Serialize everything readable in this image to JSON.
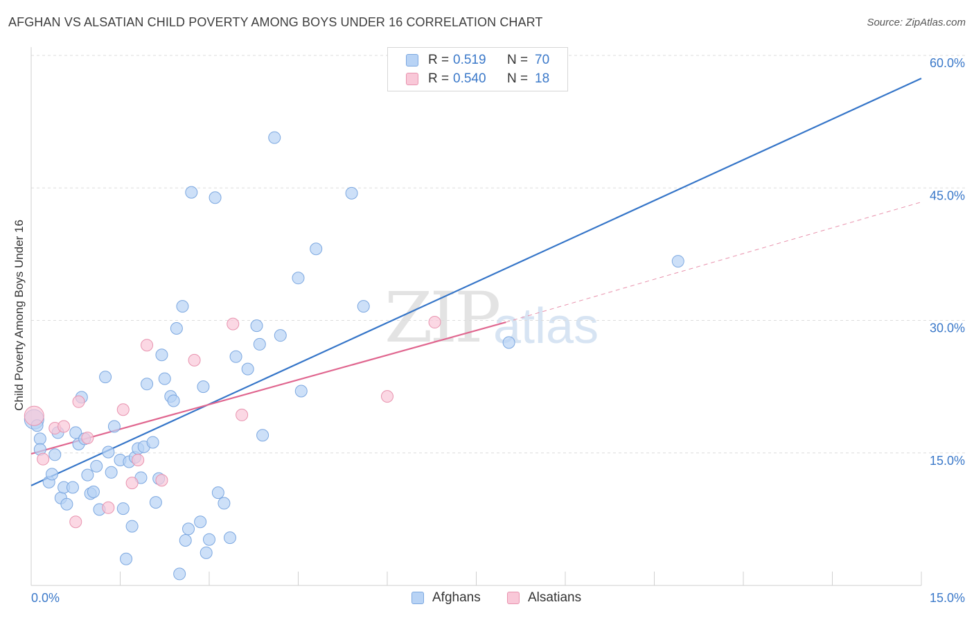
{
  "header": {
    "title": "AFGHAN VS ALSATIAN CHILD POVERTY AMONG BOYS UNDER 16 CORRELATION CHART",
    "source": "Source: ZipAtlas.com"
  },
  "legend": {
    "rows": [
      {
        "r_label": "R =",
        "r_value": "0.519",
        "n_label": "N =",
        "n_value": "70",
        "color": "#b8d3f5",
        "border": "#7ba7e0"
      },
      {
        "r_label": "R =",
        "r_value": "0.540",
        "n_label": "N =",
        "n_value": "18",
        "color": "#f9c8d8",
        "border": "#e892ae"
      }
    ]
  },
  "bottom_legend": {
    "afghans": "Afghans",
    "alsatians": "Alsatians"
  },
  "watermark": {
    "zip": "ZIP",
    "atlas": "atlas"
  },
  "chart_data": {
    "type": "scatter",
    "title": "AFGHAN VS ALSATIAN CHILD POVERTY AMONG BOYS UNDER 16 CORRELATION CHART",
    "xlabel": "",
    "ylabel": "Child Poverty Among Boys Under 16",
    "xlim": [
      0,
      15
    ],
    "ylim": [
      0,
      60
    ],
    "x_tick_labels": [
      "0.0%",
      "15.0%"
    ],
    "y_ticks": [
      15,
      30,
      45,
      60
    ],
    "y_tick_labels": [
      "15.0%",
      "30.0%",
      "45.0%",
      "60.0%"
    ],
    "grid": true,
    "legend_position": "top-center",
    "series": [
      {
        "name": "Afghans",
        "color": "#7ba7e0",
        "fill": "#b8d3f5",
        "points": [
          [
            0.05,
            18.8
          ],
          [
            0.1,
            18.1
          ],
          [
            0.15,
            16.6
          ],
          [
            0.15,
            15.4
          ],
          [
            0.3,
            11.7
          ],
          [
            0.35,
            12.6
          ],
          [
            0.4,
            14.8
          ],
          [
            0.45,
            17.3
          ],
          [
            0.5,
            9.9
          ],
          [
            0.55,
            11.1
          ],
          [
            0.6,
            9.2
          ],
          [
            0.7,
            11.1
          ],
          [
            0.75,
            17.3
          ],
          [
            0.8,
            16.0
          ],
          [
            0.85,
            21.3
          ],
          [
            0.9,
            16.6
          ],
          [
            0.95,
            12.5
          ],
          [
            1.0,
            10.4
          ],
          [
            1.05,
            10.6
          ],
          [
            1.1,
            13.5
          ],
          [
            1.15,
            8.6
          ],
          [
            1.25,
            23.6
          ],
          [
            1.3,
            15.1
          ],
          [
            1.35,
            12.8
          ],
          [
            1.4,
            18.0
          ],
          [
            1.5,
            14.2
          ],
          [
            1.55,
            8.7
          ],
          [
            1.6,
            3.0
          ],
          [
            1.65,
            14.0
          ],
          [
            1.7,
            6.7
          ],
          [
            1.75,
            14.5
          ],
          [
            1.8,
            15.5
          ],
          [
            1.85,
            12.2
          ],
          [
            1.9,
            15.7
          ],
          [
            1.95,
            22.8
          ],
          [
            2.05,
            16.2
          ],
          [
            2.1,
            9.4
          ],
          [
            2.15,
            12.1
          ],
          [
            2.2,
            26.1
          ],
          [
            2.25,
            23.4
          ],
          [
            2.35,
            21.4
          ],
          [
            2.4,
            20.9
          ],
          [
            2.45,
            29.1
          ],
          [
            2.5,
            1.3
          ],
          [
            2.55,
            31.6
          ],
          [
            2.6,
            5.1
          ],
          [
            2.65,
            6.4
          ],
          [
            2.7,
            44.5
          ],
          [
            2.85,
            7.2
          ],
          [
            2.9,
            22.5
          ],
          [
            2.95,
            3.7
          ],
          [
            3.0,
            5.2
          ],
          [
            3.1,
            43.9
          ],
          [
            3.15,
            10.5
          ],
          [
            3.25,
            9.3
          ],
          [
            3.35,
            5.4
          ],
          [
            3.45,
            25.9
          ],
          [
            3.65,
            24.5
          ],
          [
            3.8,
            29.4
          ],
          [
            3.85,
            27.3
          ],
          [
            3.9,
            17.0
          ],
          [
            4.1,
            50.7
          ],
          [
            4.2,
            28.3
          ],
          [
            4.5,
            34.8
          ],
          [
            4.55,
            22.0
          ],
          [
            4.8,
            38.1
          ],
          [
            5.4,
            44.4
          ],
          [
            5.6,
            31.6
          ],
          [
            8.05,
            27.5
          ],
          [
            10.9,
            36.7
          ]
        ]
      },
      {
        "name": "Alsatians",
        "color": "#e892ae",
        "fill": "#f9c8d8",
        "points": [
          [
            0.05,
            19.2
          ],
          [
            0.2,
            14.3
          ],
          [
            0.4,
            17.8
          ],
          [
            0.55,
            18.0
          ],
          [
            0.75,
            7.2
          ],
          [
            0.8,
            20.8
          ],
          [
            0.95,
            16.7
          ],
          [
            1.3,
            8.8
          ],
          [
            1.55,
            19.9
          ],
          [
            1.7,
            11.6
          ],
          [
            1.8,
            14.2
          ],
          [
            1.95,
            27.2
          ],
          [
            2.2,
            11.9
          ],
          [
            2.75,
            25.5
          ],
          [
            3.4,
            29.6
          ],
          [
            3.55,
            19.3
          ],
          [
            6.0,
            21.4
          ],
          [
            6.8,
            29.8
          ]
        ]
      }
    ],
    "trend_lines": [
      {
        "series": "Afghans",
        "color": "#3575c8",
        "from": [
          0,
          11.3
        ],
        "to": [
          15,
          57.4
        ],
        "style": "solid"
      },
      {
        "series": "Alsatians",
        "color": "#e0668f",
        "from": [
          0,
          14.9
        ],
        "to": [
          8.0,
          29.8
        ],
        "style": "solid"
      },
      {
        "series": "Alsatians",
        "color": "#e890ab",
        "from": [
          8.0,
          29.8
        ],
        "to": [
          15,
          43.4
        ],
        "style": "dashed"
      }
    ]
  }
}
